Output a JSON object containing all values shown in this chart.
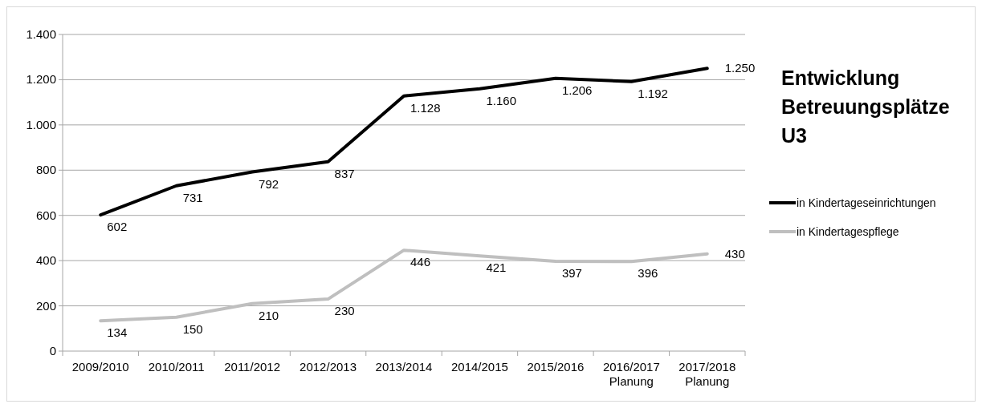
{
  "chart_data": {
    "type": "line",
    "title": "Entwicklung Betreuungsplätze U3",
    "categories": [
      "2009/2010",
      "2010/2011",
      "2011/2012",
      "2012/2013",
      "2013/2014",
      "2014/2015",
      "2015/2016",
      "2016/2017\nPlanung",
      "2017/2018\nPlanung"
    ],
    "series": [
      {
        "name": "in Kindertageseinrichtungen",
        "color": "#000000",
        "values": [
          602,
          731,
          792,
          837,
          1128,
          1160,
          1206,
          1192,
          1250
        ],
        "value_labels": [
          "602",
          "731",
          "792",
          "837",
          "1.128",
          "1.160",
          "1.206",
          "1.192",
          "1.250"
        ]
      },
      {
        "name": "in Kindertagespflege",
        "color": "#bfbfbf",
        "values": [
          134,
          150,
          210,
          230,
          446,
          421,
          397,
          396,
          430
        ],
        "value_labels": [
          "134",
          "150",
          "210",
          "230",
          "446",
          "421",
          "397",
          "396",
          "430"
        ]
      }
    ],
    "ylim": [
      0,
      1400
    ],
    "yticks": [
      0,
      {
        "value": 200,
        "label": "200"
      },
      {
        "value": 400,
        "label": "400"
      },
      {
        "value": 600,
        "label": "600"
      },
      {
        "value": 800,
        "label": "800"
      },
      {
        "value": 1000,
        "label": "1.000"
      },
      {
        "value": 1200,
        "label": "1.200"
      },
      {
        "value": 1400,
        "label": "1.400"
      }
    ],
    "grid": "y",
    "legend": "right",
    "marker": "none",
    "line_style": "solid"
  }
}
